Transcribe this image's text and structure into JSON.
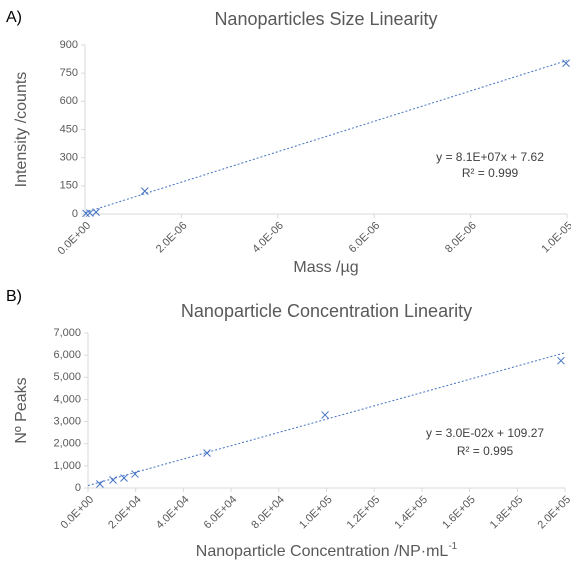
{
  "chart_data": [
    {
      "type": "scatter",
      "panel_label": "A)",
      "title": "Nanoparticles Size Linearity",
      "x_label": "Mass /µg",
      "y_label": "Intensity /counts",
      "series": [
        {
          "name": "Intensity",
          "color": "#4472c4",
          "x": [
            2e-08,
            1e-07,
            2.3e-07,
            1.24e-06,
            9.98e-06
          ],
          "values": [
            3,
            5,
            10,
            122,
            803
          ]
        }
      ],
      "trendline": {
        "color": "#4472c4",
        "x": [
          0,
          1e-05
        ],
        "values": [
          7.62,
          817.62
        ]
      },
      "annotations": [
        "y = 8.1E+07x + 7.62",
        "R² = 0.999"
      ],
      "xlim": [
        0,
        1e-05
      ],
      "xticks": [
        {
          "value": 0,
          "label": "0.0E+00"
        },
        {
          "value": 2e-06,
          "label": "2.0E-06"
        },
        {
          "value": 4e-06,
          "label": "4.0E-06"
        },
        {
          "value": 6e-06,
          "label": "6.0E-06"
        },
        {
          "value": 8e-06,
          "label": "8.0E-06"
        },
        {
          "value": 1e-05,
          "label": "1.0E-05"
        }
      ],
      "ylim": [
        0,
        900
      ],
      "yticks": [
        0,
        150,
        300,
        450,
        600,
        750,
        900
      ],
      "grid": false
    },
    {
      "type": "scatter",
      "panel_label": "B)",
      "title": "Nanoparticle Concentration Linearity",
      "x_label": "Nanoparticle Concentration /NP·mL",
      "x_label_sup": "-1",
      "y_label": "Nº Peaks",
      "series": [
        {
          "name": "Peaks",
          "color": "#4472c4",
          "x": [
            5000,
            10500,
            15100,
            19700,
            49900,
            99400,
            198300
          ],
          "values": [
            180,
            360,
            450,
            630,
            1580,
            3300,
            5750
          ]
        }
      ],
      "trendline": {
        "color": "#4472c4",
        "x": [
          0,
          200000
        ],
        "values": [
          109.27,
          6109.27
        ]
      },
      "annotations": [
        "y = 3.0E-02x + 109.27",
        "R² = 0.995"
      ],
      "xlim": [
        0,
        200000
      ],
      "xticks": [
        {
          "value": 0,
          "label": "0.0E+00"
        },
        {
          "value": 20000,
          "label": "2.0E+04"
        },
        {
          "value": 40000,
          "label": "4.0E+04"
        },
        {
          "value": 60000,
          "label": "6.0E+04"
        },
        {
          "value": 80000,
          "label": "8.0E+04"
        },
        {
          "value": 100000,
          "label": "1.0E+05"
        },
        {
          "value": 120000,
          "label": "1.2E+05"
        },
        {
          "value": 140000,
          "label": "1.4E+05"
        },
        {
          "value": 160000,
          "label": "1.6E+05"
        },
        {
          "value": 180000,
          "label": "1.8E+05"
        },
        {
          "value": 200000,
          "label": "2.0E+05"
        }
      ],
      "ylim": [
        0,
        7000
      ],
      "yticks": [
        0,
        {
          "value": 1000,
          "label": "1,000"
        },
        {
          "value": 2000,
          "label": "2,000"
        },
        {
          "value": 3000,
          "label": "3,000"
        },
        {
          "value": 4000,
          "label": "4,000"
        },
        {
          "value": 5000,
          "label": "5,000"
        },
        {
          "value": 6000,
          "label": "6,000"
        },
        {
          "value": 7000,
          "label": "7,000"
        }
      ],
      "grid": false
    }
  ]
}
